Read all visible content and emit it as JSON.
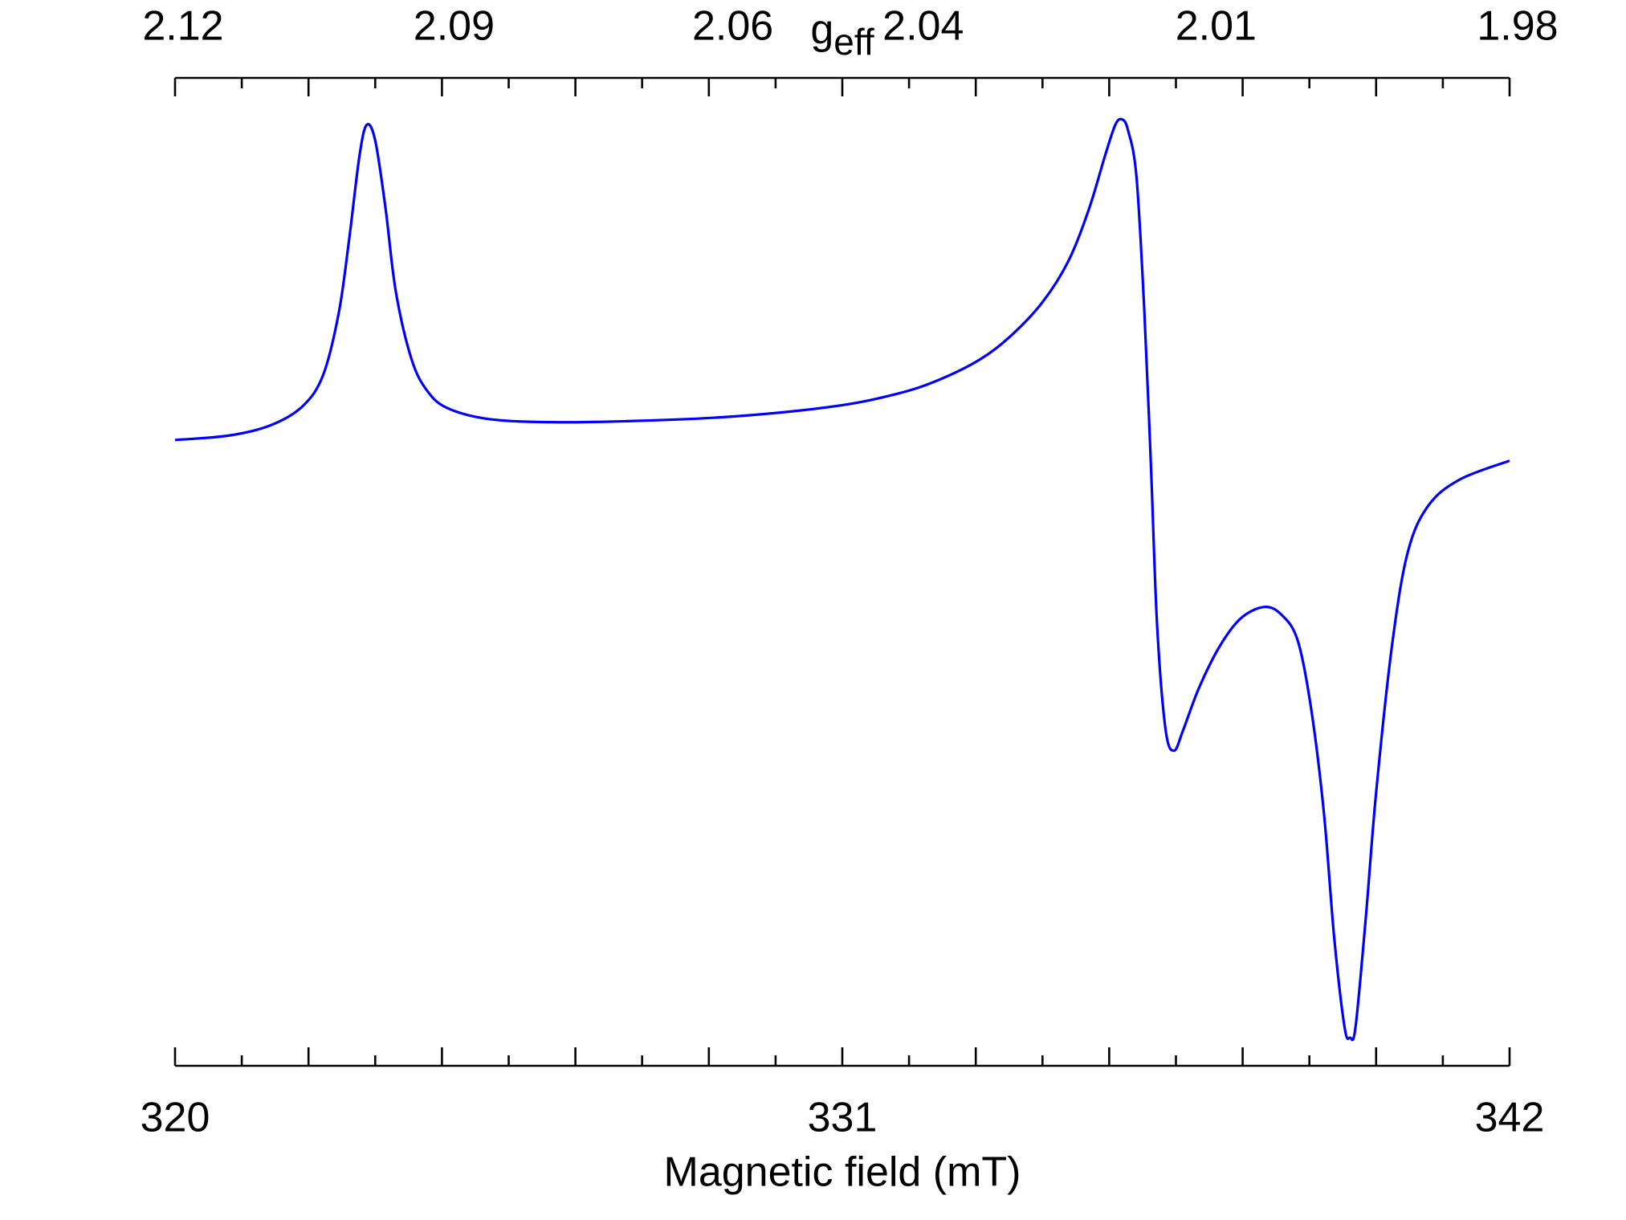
{
  "chart_data": {
    "type": "line",
    "xlabel": "Magnetic field (mT)",
    "x2label": "g",
    "x2label_sub": "eff",
    "xlim": [
      320,
      342
    ],
    "xticks": [
      320,
      331,
      342
    ],
    "xticks_unlabeled": [
      322.2,
      324.4,
      326.6,
      328.8,
      333.2,
      335.4,
      337.6,
      339.8
    ],
    "xticks_minor": [
      321.1,
      323.3,
      325.5,
      327.7,
      329.9,
      332.1,
      334.3,
      336.5,
      338.7,
      340.9
    ],
    "x2lim": [
      2.12,
      1.98
    ],
    "x2scale": "reciprocal",
    "x2ticks": [
      2.12,
      2.09,
      2.06,
      2.04,
      2.01,
      1.98
    ],
    "ylim": [
      -1,
      1
    ],
    "series": [
      {
        "color": "#0000ff",
        "x": [
          320.0,
          320.89,
          321.58,
          322.1,
          322.44,
          322.7,
          322.87,
          323.04,
          323.16,
          323.3,
          323.47,
          323.64,
          323.9,
          324.16,
          324.5,
          325.19,
          326.22,
          327.43,
          329.14,
          330.86,
          331.89,
          332.58,
          333.27,
          333.78,
          334.3,
          334.73,
          335.07,
          335.33,
          335.5,
          335.61,
          335.71,
          335.85,
          335.98,
          336.09,
          336.19,
          336.33,
          336.47,
          336.62,
          336.88,
          337.22,
          337.57,
          337.96,
          338.25,
          338.51,
          338.73,
          338.94,
          339.11,
          339.28,
          339.37,
          339.46,
          339.63,
          339.8,
          340.06,
          340.32,
          340.66,
          341.18,
          342.0
        ],
        "values": [
          0.267,
          0.276,
          0.297,
          0.335,
          0.398,
          0.525,
          0.673,
          0.842,
          0.905,
          0.873,
          0.736,
          0.567,
          0.43,
          0.366,
          0.331,
          0.309,
          0.303,
          0.305,
          0.314,
          0.335,
          0.36,
          0.388,
          0.43,
          0.478,
          0.546,
          0.63,
          0.736,
          0.842,
          0.905,
          0.916,
          0.894,
          0.799,
          0.525,
          0.208,
          -0.109,
          -0.32,
          -0.362,
          -0.32,
          -0.235,
          -0.151,
          -0.094,
          -0.071,
          -0.088,
          -0.14,
          -0.278,
          -0.489,
          -0.742,
          -0.922,
          -0.943,
          -0.922,
          -0.7,
          -0.447,
          -0.151,
          0.039,
          0.134,
          0.187,
          0.225
        ]
      }
    ]
  }
}
